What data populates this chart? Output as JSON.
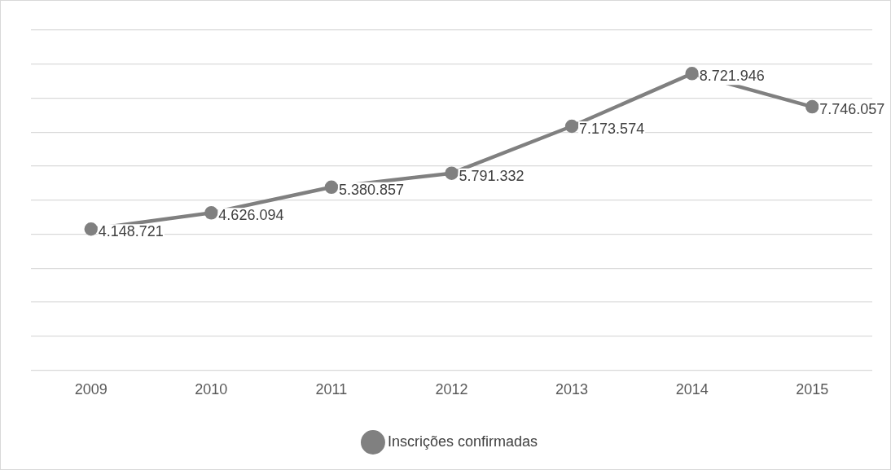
{
  "chart_data": {
    "type": "line",
    "categories": [
      "2009",
      "2010",
      "2011",
      "2012",
      "2013",
      "2014",
      "2015"
    ],
    "series": [
      {
        "name": "Inscrições confirmadas",
        "color": "#808080",
        "values": [
          4148721,
          4626094,
          5380857,
          5791332,
          7173574,
          8721946,
          7746057
        ],
        "value_labels": [
          "4.148.721",
          "4.626.094",
          "5.380.857",
          "5.791.332",
          "7.173.574",
          "8.721.946",
          "7.746.057"
        ]
      }
    ],
    "ylim": [
      0,
      10000000
    ],
    "yticks": [
      {
        "value": 0,
        "label": null
      },
      {
        "value": 1000000,
        "label": null
      },
      {
        "value": 2000000,
        "label": null
      },
      {
        "value": 3000000,
        "label": null
      },
      {
        "value": 4000000,
        "label": null
      },
      {
        "value": 5000000,
        "label": null
      },
      {
        "value": 6000000,
        "label": null
      },
      {
        "value": 7000000,
        "label": null
      },
      {
        "value": 8000000,
        "label": null
      },
      {
        "value": 9000000,
        "label": null
      },
      {
        "value": 10000000,
        "label": null
      }
    ],
    "tick_labels": "x",
    "grid": "y",
    "legend": "bottom",
    "marker": "circle",
    "line_style": "solid"
  }
}
